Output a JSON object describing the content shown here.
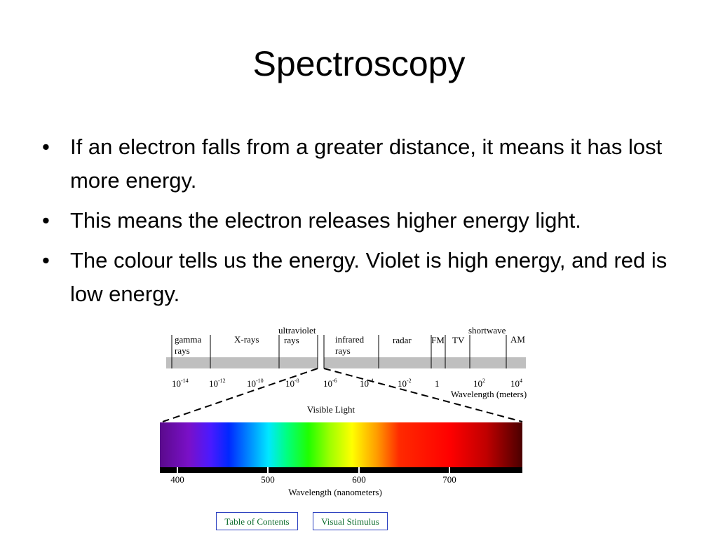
{
  "title": "Spectroscopy",
  "bullets": [
    "If an electron falls from a greater distance, it means it has lost more energy.",
    "This means the electron releases higher energy light.",
    "The colour tells us the energy. Violet is high energy, and red is low energy."
  ],
  "diagram": {
    "regions": [
      {
        "lines": [
          "gamma",
          "rays"
        ]
      },
      {
        "lines": [
          "X-rays"
        ]
      },
      {
        "lines": [
          "ultraviolet",
          "rays"
        ]
      },
      {
        "lines": [
          "infrared",
          "rays"
        ]
      },
      {
        "lines": [
          "radar"
        ]
      },
      {
        "lines": [
          "FM"
        ]
      },
      {
        "lines": [
          "TV"
        ]
      },
      {
        "lines": [
          "shortwave"
        ]
      },
      {
        "lines": [
          "AM"
        ]
      }
    ],
    "meter_ticks": [
      {
        "base": "10",
        "exp": "-14"
      },
      {
        "base": "10",
        "exp": "-12"
      },
      {
        "base": "10",
        "exp": "-10"
      },
      {
        "base": "10",
        "exp": "-8"
      },
      {
        "base": "10",
        "exp": "-6"
      },
      {
        "base": "10",
        "exp": "-4"
      },
      {
        "base": "10",
        "exp": "-2"
      },
      {
        "base": "1"
      },
      {
        "base": "10",
        "exp": "2"
      },
      {
        "base": "10",
        "exp": "4"
      }
    ],
    "meter_axis_label": "Wavelength (meters)",
    "visible_label": "Visible Light",
    "nm_ticks": [
      "400",
      "500",
      "600",
      "700"
    ],
    "nm_axis_label": "Wavelength (nanometers)"
  },
  "buttons": [
    "Table of Contents",
    "Visual Stimulus"
  ]
}
